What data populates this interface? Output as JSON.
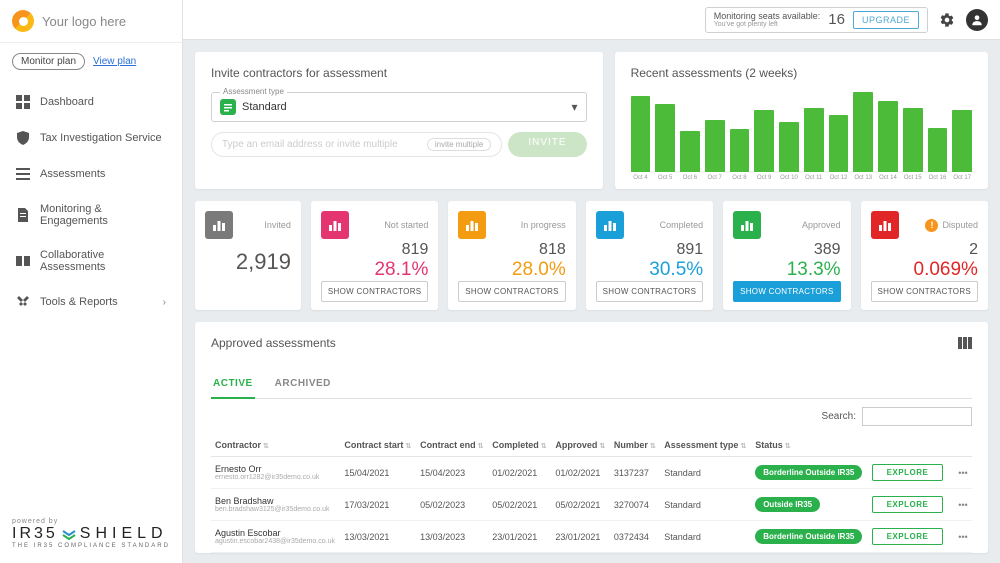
{
  "header": {
    "logo_text": "Your logo here",
    "seats_label": "Monitoring seats available:",
    "seats_sub": "You've got plenty left",
    "seats_count": "16",
    "upgrade_label": "UPGRADE"
  },
  "sidebar": {
    "plan_pill": "Monitor plan",
    "view_plan": "View plan",
    "items": [
      {
        "label": "Dashboard",
        "icon": "dashboard"
      },
      {
        "label": "Tax Investigation Service",
        "icon": "shield"
      },
      {
        "label": "Assessments",
        "icon": "list"
      },
      {
        "label": "Monitoring & Engagements",
        "icon": "doc"
      },
      {
        "label": "Collaborative Assessments",
        "icon": "collab"
      },
      {
        "label": "Tools & Reports",
        "icon": "tools",
        "chevron": true
      }
    ],
    "powered": "powered by",
    "brand": "IR35 SHIELD",
    "brand_sub": "THE IR35 COMPLIANCE STANDARD"
  },
  "invite": {
    "title": "Invite contractors for assessment",
    "type_label": "Assessment type",
    "type_value": "Standard",
    "placeholder": "Type an email address or invite multiple",
    "multi_label": "invite multiple",
    "button": "INVITE"
  },
  "chart": {
    "title": "Recent assessments (2 weeks)",
    "bar_color": "#4dbb3a",
    "bars": [
      85,
      76,
      46,
      58,
      48,
      70,
      56,
      72,
      64,
      90,
      80,
      72,
      50,
      70
    ],
    "labels": [
      "Oct 4",
      "Oct 5",
      "Oct 6",
      "Oct 7",
      "Oct 8",
      "Oct 9",
      "Oct 10",
      "Oct 11",
      "Oct 12",
      "Oct 13",
      "Oct 14",
      "Oct 15",
      "Oct 16",
      "Oct 17"
    ]
  },
  "stats": [
    {
      "id": "invited",
      "label": "Invited",
      "value": "2,919",
      "pct": "",
      "color": "#7a7a7a",
      "icon_bg": "#7a7a7a",
      "btn": ""
    },
    {
      "id": "notstarted",
      "label": "Not started",
      "value": "819",
      "pct": "28.1%",
      "color": "#e53571",
      "icon_bg": "#e53571",
      "btn": "SHOW CONTRACTORS"
    },
    {
      "id": "inprogress",
      "label": "In progress",
      "value": "818",
      "pct": "28.0%",
      "color": "#f39c12",
      "icon_bg": "#f39c12",
      "btn": "SHOW CONTRACTORS"
    },
    {
      "id": "completed",
      "label": "Completed",
      "value": "891",
      "pct": "30.5%",
      "color": "#1a9fd9",
      "icon_bg": "#1a9fd9",
      "btn": "SHOW CONTRACTORS"
    },
    {
      "id": "approved",
      "label": "Approved",
      "value": "389",
      "pct": "13.3%",
      "color": "#2bb14c",
      "icon_bg": "#2bb14c",
      "btn": "SHOW CONTRACTORS",
      "active": true
    },
    {
      "id": "disputed",
      "label": "Disputed",
      "value": "2",
      "pct": "0.069%",
      "color": "#e02626",
      "icon_bg": "#e02626",
      "btn": "SHOW CONTRACTORS",
      "warn": true
    }
  ],
  "table": {
    "title": "Approved assessments",
    "tabs": {
      "active": "ACTIVE",
      "archived": "ARCHIVED"
    },
    "search_label": "Search:",
    "columns": [
      "Contractor",
      "Contract start",
      "Contract end",
      "Completed",
      "Approved",
      "Number",
      "Assessment type",
      "Status",
      "",
      ""
    ],
    "rows": [
      {
        "name": "Ernesto Orr",
        "email": "ernesto.orr1282@ir35demo.co.uk",
        "start": "15/04/2021",
        "end": "15/04/2023",
        "completed": "01/02/2021",
        "approved": "01/02/2021",
        "num": "3137237",
        "type": "Standard",
        "status": "Borderline Outside IR35",
        "explore": "EXPLORE"
      },
      {
        "name": "Ben Bradshaw",
        "email": "ben.bradshaw3125@ir35demo.co.uk",
        "start": "17/03/2021",
        "end": "05/02/2023",
        "completed": "05/02/2021",
        "approved": "05/02/2021",
        "num": "3270074",
        "type": "Standard",
        "status": "Outside IR35",
        "explore": "EXPLORE"
      },
      {
        "name": "Agustin Escobar",
        "email": "agustin.escobar2438@ir35demo.co.uk",
        "start": "13/03/2021",
        "end": "13/03/2023",
        "completed": "23/01/2021",
        "approved": "23/01/2021",
        "num": "0372434",
        "type": "Standard",
        "status": "Borderline Outside IR35",
        "explore": "EXPLORE"
      }
    ]
  }
}
